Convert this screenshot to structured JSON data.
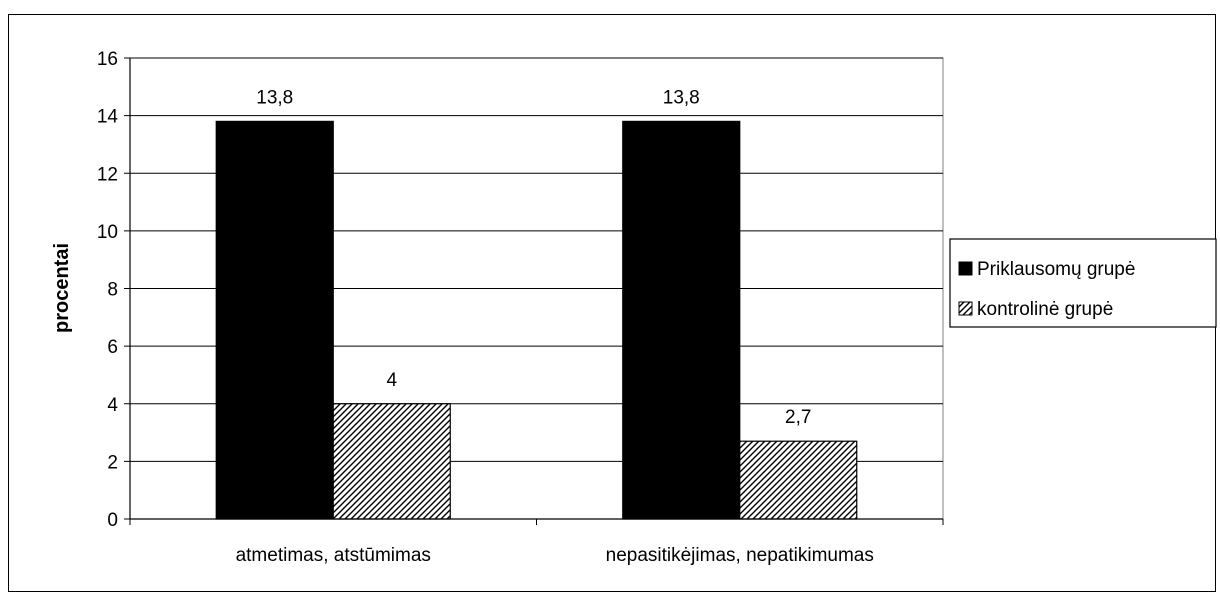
{
  "chart_data": {
    "type": "bar",
    "categories": [
      "atmetimas, atstūmimas",
      "nepasitikėjimas, nepatikimumas"
    ],
    "series": [
      {
        "name": "Priklausomų grupė",
        "values": [
          13.8,
          13.8
        ],
        "labels": [
          "13,8",
          "13,8"
        ],
        "color": "#000000",
        "pattern": "solid"
      },
      {
        "name": "kontrolinė grupė",
        "values": [
          4,
          2.7
        ],
        "labels": [
          "4",
          "2,7"
        ],
        "color": "#000000",
        "pattern": "diagonal-hatch"
      }
    ],
    "title": "",
    "xlabel": "",
    "ylabel": "procentai",
    "ylim": [
      0,
      16
    ],
    "yticks": [
      0,
      2,
      4,
      6,
      8,
      10,
      12,
      14,
      16
    ],
    "ytick_labels": [
      "0",
      "2",
      "4",
      "6",
      "8",
      "10",
      "12",
      "14",
      "16"
    ],
    "grid": true,
    "legend_position": "right"
  }
}
